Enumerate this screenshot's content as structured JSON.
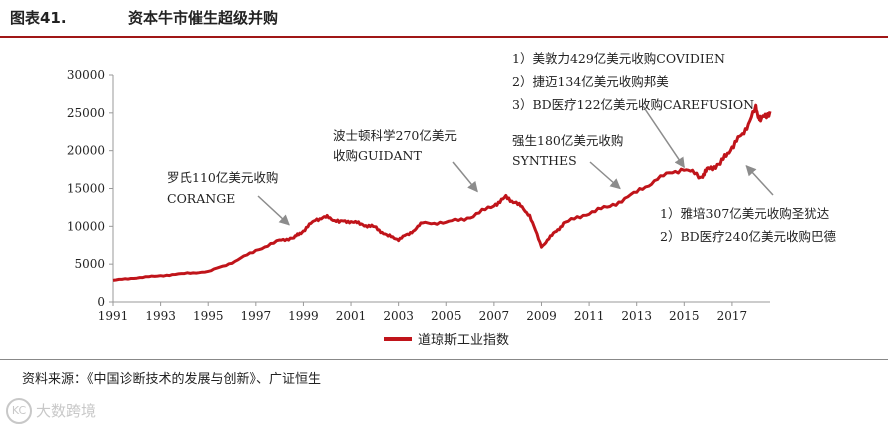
{
  "header": {
    "figure_number": "图表41.",
    "title": "资本牛市催生超级并购"
  },
  "source": "资料来源：《中国诊断技术的发展与创新》、广证恒生",
  "watermark": {
    "logo": "KC",
    "text": "大数跨境"
  },
  "chart_data": {
    "type": "line",
    "xlim": [
      1991,
      2018.6
    ],
    "ylim": [
      0,
      30000
    ],
    "x_ticks": [
      1991,
      1993,
      1995,
      1997,
      1999,
      2001,
      2003,
      2005,
      2007,
      2009,
      2011,
      2013,
      2015,
      2017
    ],
    "y_ticks": [
      0,
      5000,
      10000,
      15000,
      20000,
      25000,
      30000
    ],
    "legend": "bottom-center",
    "colors": {
      "series": "#c0141a",
      "axis": "#999999",
      "arrow": "#8c8c8c"
    },
    "series": [
      {
        "name": "道琼斯工业指数",
        "points": [
          [
            1991,
            2850
          ],
          [
            1992,
            3200
          ],
          [
            1993,
            3450
          ],
          [
            1994,
            3750
          ],
          [
            1995,
            4000
          ],
          [
            1996,
            5200
          ],
          [
            1997,
            6800
          ],
          [
            1998,
            8100
          ],
          [
            1998.6,
            8500
          ],
          [
            1999,
            9400
          ],
          [
            1999.5,
            10900
          ],
          [
            2000,
            11200
          ],
          [
            2000.5,
            10600
          ],
          [
            2001,
            10700
          ],
          [
            2001.5,
            10200
          ],
          [
            2002,
            9900
          ],
          [
            2002.5,
            8800
          ],
          [
            2003,
            8300
          ],
          [
            2003.5,
            9100
          ],
          [
            2004,
            10400
          ],
          [
            2005,
            10500
          ],
          [
            2006,
            11200
          ],
          [
            2007,
            12800
          ],
          [
            2007.5,
            13800
          ],
          [
            2008,
            13000
          ],
          [
            2008.5,
            11500
          ],
          [
            2009,
            7300
          ],
          [
            2009.5,
            9000
          ],
          [
            2010,
            10500
          ],
          [
            2011,
            11800
          ],
          [
            2012,
            12800
          ],
          [
            2013,
            14500
          ],
          [
            2014,
            16500
          ],
          [
            2015,
            17700
          ],
          [
            2015.7,
            16500
          ],
          [
            2016,
            17500
          ],
          [
            2016.5,
            18300
          ],
          [
            2017,
            20500
          ],
          [
            2017.5,
            22500
          ],
          [
            2018,
            25500
          ],
          [
            2018.2,
            24000
          ],
          [
            2018.6,
            25200
          ]
        ]
      }
    ],
    "annotations": [
      {
        "lines": [
          "罗氏110亿美元收购",
          "CORANGE"
        ],
        "target": [
          1998.4,
          10200
        ]
      },
      {
        "lines": [
          "波士顿科学270亿美元",
          "收购GUIDANT"
        ],
        "target": [
          2006.3,
          14600
        ]
      },
      {
        "lines": [
          "强生180亿美元收购",
          "SYNTHES"
        ],
        "target": [
          2012.3,
          15000
        ]
      },
      {
        "lines": [
          "1）美敦力429亿美元收购COVIDIEN",
          "2）捷迈134亿美元收购邦美",
          "3）BD医疗122亿美元收购CAREFUSION"
        ],
        "target": [
          2015,
          17800
        ]
      },
      {
        "lines": [
          "1）雅培307亿美元收购圣犹达",
          "2）BD医疗240亿美元收购巴德"
        ],
        "target": [
          2017.6,
          18000
        ]
      }
    ]
  }
}
